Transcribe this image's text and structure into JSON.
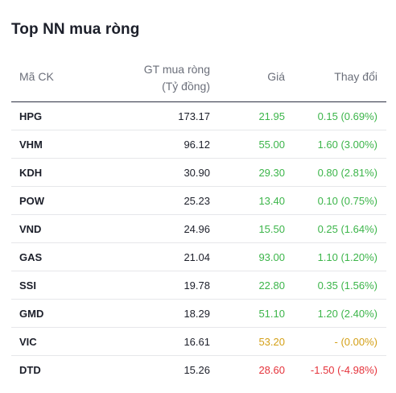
{
  "widget": {
    "title": "Top NN mua ròng",
    "columns": {
      "code": "Mã CK",
      "value_line1": "GT mua ròng",
      "value_line2": "(Tỷ đồng)",
      "price": "Giá",
      "change": "Thay đổi"
    },
    "colors": {
      "up": "#3cb54a",
      "ref": "#d4a017",
      "down": "#e5333b"
    },
    "rows": [
      {
        "code": "HPG",
        "value": "173.17",
        "price": "21.95",
        "change": "0.15 (0.69%)",
        "trend": "up"
      },
      {
        "code": "VHM",
        "value": "96.12",
        "price": "55.00",
        "change": "1.60 (3.00%)",
        "trend": "up"
      },
      {
        "code": "KDH",
        "value": "30.90",
        "price": "29.30",
        "change": "0.80 (2.81%)",
        "trend": "up"
      },
      {
        "code": "POW",
        "value": "25.23",
        "price": "13.40",
        "change": "0.10 (0.75%)",
        "trend": "up"
      },
      {
        "code": "VND",
        "value": "24.96",
        "price": "15.50",
        "change": "0.25 (1.64%)",
        "trend": "up"
      },
      {
        "code": "GAS",
        "value": "21.04",
        "price": "93.00",
        "change": "1.10 (1.20%)",
        "trend": "up"
      },
      {
        "code": "SSI",
        "value": "19.78",
        "price": "22.80",
        "change": "0.35 (1.56%)",
        "trend": "up"
      },
      {
        "code": "GMD",
        "value": "18.29",
        "price": "51.10",
        "change": "1.20 (2.40%)",
        "trend": "up"
      },
      {
        "code": "VIC",
        "value": "16.61",
        "price": "53.20",
        "change": "- (0.00%)",
        "trend": "ref"
      },
      {
        "code": "DTD",
        "value": "15.26",
        "price": "28.60",
        "change": "-1.50 (-4.98%)",
        "trend": "down"
      }
    ]
  }
}
